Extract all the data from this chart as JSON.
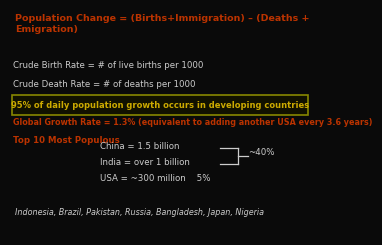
{
  "bg_color": "#0a0a0a",
  "title_text": "Population Change = (Births+Immigration) – (Deaths +\nEmigration)",
  "title_color": "#bb3300",
  "line1": "Crude Birth Rate = # of live births per 1000",
  "line2": "Crude Death Rate = # of deaths per 1000",
  "white_color": "#cccccc",
  "box_text": "95% of daily population growth occurs in developing countries",
  "box_text_color": "#ccaa00",
  "box_bg": "#111100",
  "box_border": "#888800",
  "global_text": "Global Growth Rate = 1.3% (equivalent to adding another USA every 3.6 years)",
  "global_color": "#bb3300",
  "top10_label": "Top 10 Most Populous",
  "top10_color": "#bb3300",
  "china_text": "China = 1.5 billion",
  "india_text": "India = over 1 billion",
  "usa_text": "USA = ~300 million    5%",
  "pct40_text": "~40%",
  "bottom_text": "Indonesia, Brazil, Pakistan, Russia, Bangladesh, Japan, Nigeria"
}
